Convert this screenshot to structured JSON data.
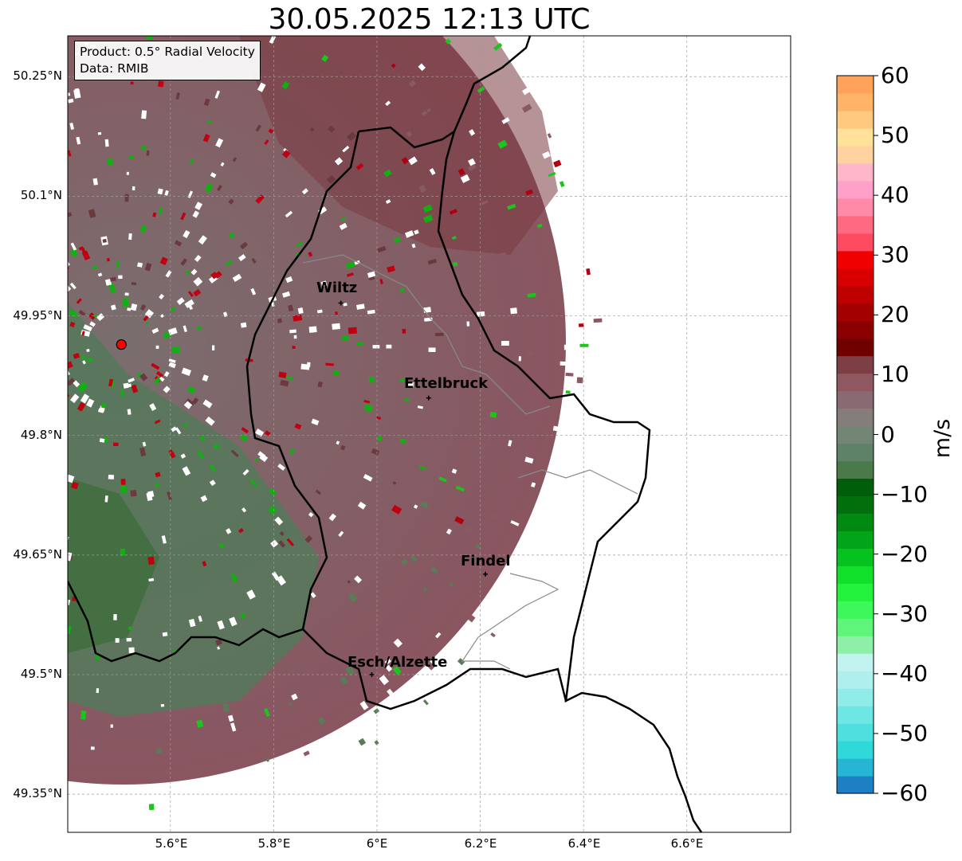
{
  "title": "30.05.2025 12:13 UTC",
  "info": {
    "product": "Product: 0.5° Radial Velocity",
    "data": "Data: RMIB"
  },
  "cities": [
    {
      "name": "Wiltz",
      "lon": 5.93,
      "lat": 49.966
    },
    {
      "name": "Ettelbruck",
      "lon": 6.1,
      "lat": 49.847
    },
    {
      "name": "Findel",
      "lon": 6.21,
      "lat": 49.626
    },
    {
      "name": "Esch/Alzette",
      "lon": 5.99,
      "lat": 49.5
    }
  ],
  "radar_site": {
    "lon": 5.505,
    "lat": 49.914
  },
  "lat_ticks": [
    "50.25°N",
    "50.1°N",
    "49.95°N",
    "49.8°N",
    "49.65°N",
    "49.5°N",
    "49.35°N"
  ],
  "lon_ticks": [
    "5.6°E",
    "5.8°E",
    "6°E",
    "6.2°E",
    "6.4°E",
    "6.6°E"
  ],
  "colorbar": {
    "label": "m/s",
    "min": -60,
    "max": 60,
    "ticks": [
      "60",
      "50",
      "40",
      "30",
      "20",
      "10",
      "0",
      "−10",
      "−20",
      "−30",
      "−40",
      "−50",
      "−60"
    ],
    "colors": [
      "#1f7fc4",
      "#26b6d4",
      "#2fd8d9",
      "#4de0de",
      "#6ee6e3",
      "#8fece9",
      "#aef0ee",
      "#c2f3f1",
      "#8ef0a8",
      "#5ff57a",
      "#3ef75a",
      "#22f23b",
      "#10e02a",
      "#06c21e",
      "#02a517",
      "#008a12",
      "#00700d",
      "#005e0a",
      "#4a7a4a",
      "#5e8266",
      "#738575",
      "#857c7c",
      "#8a6a72",
      "#8f5860",
      "#7e3e46",
      "#6e0000",
      "#8a0000",
      "#a30000",
      "#bf0000",
      "#d80000",
      "#f00000",
      "#ff4a60",
      "#ff6a80",
      "#ff8aa8",
      "#ffa0c8",
      "#ffb6c8",
      "#ffd2a0",
      "#ffe19a",
      "#ffca80",
      "#ffb468",
      "#ffa25a"
    ]
  }
}
